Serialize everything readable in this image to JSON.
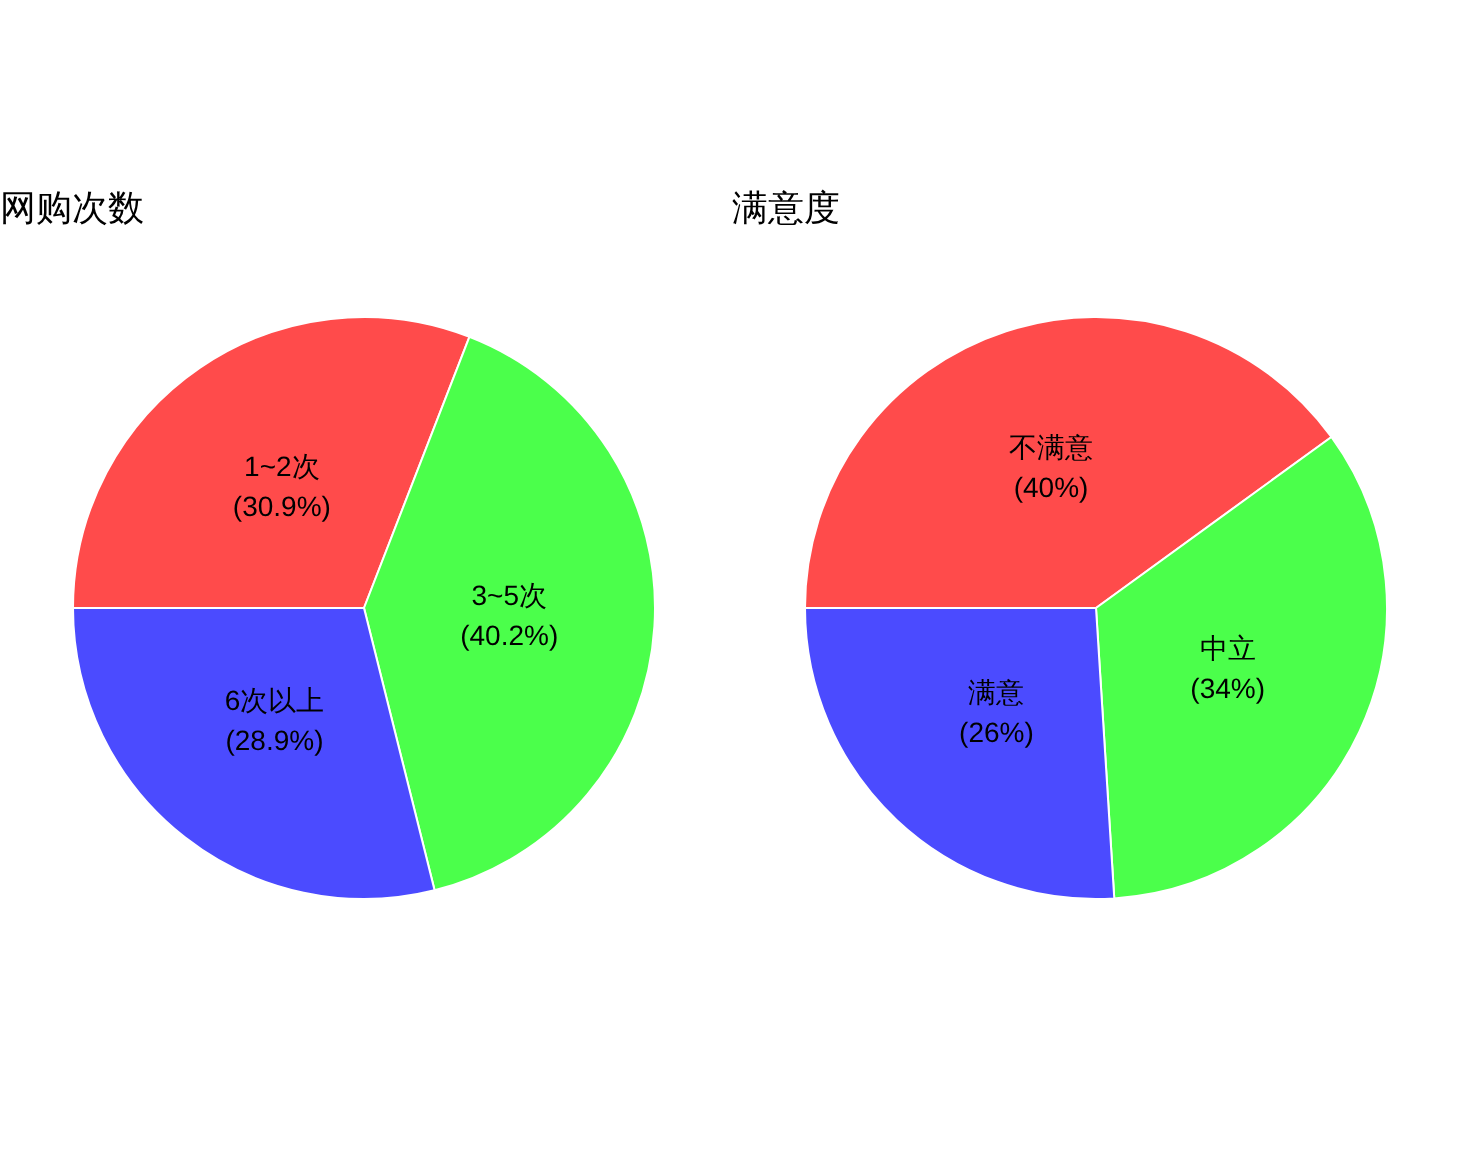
{
  "chart_data": [
    {
      "type": "pie",
      "title": "网购次数",
      "categories": [
        "1~2次",
        "3~5次",
        "6次以上"
      ],
      "values": [
        30.9,
        40.2,
        28.9
      ],
      "value_labels": [
        "(30.9%)",
        "(40.2%)",
        "(28.9%)"
      ],
      "colors": [
        "#ff4b4b",
        "#4bff4b",
        "#4b4bff"
      ]
    },
    {
      "type": "pie",
      "title": "满意度",
      "categories": [
        "不满意",
        "中立",
        "满意"
      ],
      "values": [
        40,
        34,
        26
      ],
      "value_labels": [
        "(40%)",
        "(34%)",
        "(26%)"
      ],
      "colors": [
        "#ff4b4b",
        "#4bff4b",
        "#4b4bff"
      ]
    }
  ]
}
